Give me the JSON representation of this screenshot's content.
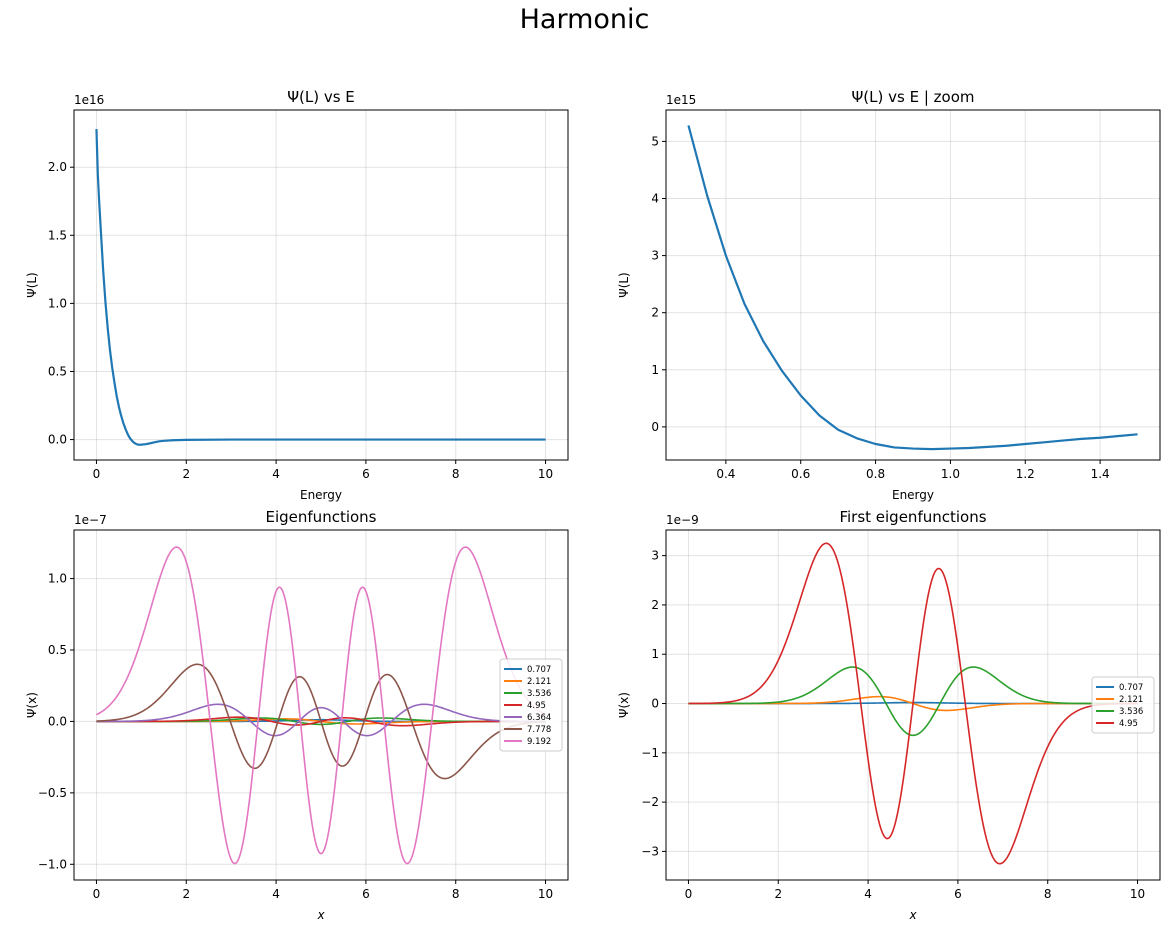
{
  "figure": {
    "suptitle": "Harmonic"
  },
  "chart_data": [
    {
      "id": "p0",
      "type": "line",
      "title": "Ψ(L) vs E",
      "xlabel": "Energy",
      "ylabel": "Ψ(L)",
      "scale_label": "1e16",
      "xlim": [
        -0.5,
        10.5
      ],
      "ylim": [
        -0.15,
        2.42
      ],
      "xticks": [
        0,
        2,
        4,
        6,
        8,
        10
      ],
      "xtick_labels": [
        "0",
        "2",
        "4",
        "6",
        "8",
        "10"
      ],
      "yticks": [
        0,
        0.5,
        1.0,
        1.5,
        2.0
      ],
      "ytick_labels": [
        "0.0",
        "0.5",
        "1.0",
        "1.5",
        "2.0"
      ],
      "grid": true,
      "series": [
        {
          "color": "#1f77b4",
          "x": [
            0.0,
            0.03,
            0.06,
            0.1,
            0.15,
            0.2,
            0.25,
            0.3,
            0.35,
            0.4,
            0.45,
            0.5,
            0.55,
            0.6,
            0.65,
            0.7,
            0.75,
            0.8,
            0.85,
            0.9,
            0.95,
            1.0,
            1.1,
            1.2,
            1.3,
            1.4,
            1.5,
            1.7,
            2.0,
            3.0,
            4.0,
            5.0,
            6.0,
            7.0,
            8.0,
            9.0,
            10.0
          ],
          "y": [
            2.28,
            1.95,
            1.75,
            1.52,
            1.24,
            1.01,
            0.82,
            0.66,
            0.53,
            0.42,
            0.32,
            0.24,
            0.175,
            0.12,
            0.075,
            0.037,
            0.008,
            -0.012,
            -0.026,
            -0.035,
            -0.038,
            -0.037,
            -0.034,
            -0.027,
            -0.019,
            -0.013,
            -0.009,
            -0.005,
            -0.002,
            0,
            0,
            0,
            0,
            0,
            0,
            0,
            0
          ]
        }
      ]
    },
    {
      "id": "p1",
      "type": "line",
      "title": "Ψ(L) vs E | zoom",
      "xlabel": "Energy",
      "ylabel": "Ψ(L)",
      "scale_label": "1e15",
      "xlim": [
        0.24,
        1.56
      ],
      "ylim": [
        -0.58,
        5.55
      ],
      "xticks": [
        0.4,
        0.6,
        0.8,
        1.0,
        1.2,
        1.4
      ],
      "xtick_labels": [
        "0.4",
        "0.6",
        "0.8",
        "1.0",
        "1.2",
        "1.4"
      ],
      "yticks": [
        0,
        1,
        2,
        3,
        4,
        5
      ],
      "ytick_labels": [
        "0",
        "1",
        "2",
        "3",
        "4",
        "5"
      ],
      "grid": true,
      "series": [
        {
          "color": "#1f77b4",
          "x": [
            0.3,
            0.35,
            0.4,
            0.45,
            0.5,
            0.55,
            0.6,
            0.65,
            0.7,
            0.75,
            0.8,
            0.85,
            0.9,
            0.95,
            1.0,
            1.05,
            1.1,
            1.15,
            1.2,
            1.25,
            1.3,
            1.35,
            1.4,
            1.45,
            1.5
          ],
          "y": [
            5.28,
            4.05,
            3.0,
            2.15,
            1.5,
            0.98,
            0.55,
            0.2,
            -0.05,
            -0.2,
            -0.3,
            -0.36,
            -0.38,
            -0.39,
            -0.38,
            -0.37,
            -0.35,
            -0.33,
            -0.3,
            -0.27,
            -0.24,
            -0.21,
            -0.19,
            -0.16,
            -0.13
          ]
        }
      ]
    },
    {
      "id": "p2",
      "type": "line",
      "title": "Eigenfunctions",
      "xlabel": "x",
      "ylabel": "Ψ(x)",
      "scale_label": "1e−7",
      "xlim": [
        -0.5,
        10.5
      ],
      "ylim": [
        -1.11,
        1.34
      ],
      "xticks": [
        0,
        2,
        4,
        6,
        8,
        10
      ],
      "xtick_labels": [
        "0",
        "2",
        "4",
        "6",
        "8",
        "10"
      ],
      "yticks": [
        -1.0,
        -0.5,
        0,
        0.5,
        1.0
      ],
      "ytick_labels": [
        "−1.0",
        "−0.5",
        "0.0",
        "0.5",
        "1.0"
      ],
      "grid": true,
      "legend": "center-right",
      "series": [
        {
          "name": "0.707",
          "color": "#1f77b4",
          "n": 0,
          "amp": 0.012,
          "sigma": 0.63,
          "center": 5
        },
        {
          "name": "2.121",
          "color": "#ff7f0e",
          "n": 1,
          "amp": 0.018,
          "sigma": 0.79,
          "center": 5
        },
        {
          "name": "3.536",
          "color": "#2ca02c",
          "n": 2,
          "amp": 0.024,
          "sigma": 0.85,
          "center": 5
        },
        {
          "name": "4.95",
          "color": "#d62728",
          "n": 3,
          "amp": 0.03,
          "sigma": 0.9,
          "center": 5
        },
        {
          "name": "6.364",
          "color": "#9467bd",
          "n": 4,
          "amp": 0.12,
          "sigma": 0.95,
          "center": 5
        },
        {
          "name": "7.778",
          "color": "#8c564b",
          "n": 5,
          "amp": 0.4,
          "sigma": 1.0,
          "center": 5
        },
        {
          "name": "9.192",
          "color": "#e377c2",
          "n": 6,
          "amp": 1.22,
          "sigma": 1.05,
          "center": 5
        }
      ]
    },
    {
      "id": "p3",
      "type": "line",
      "title": "First eigenfunctions",
      "xlabel": "x",
      "ylabel": "Ψ(x)",
      "scale_label": "1e−9",
      "xlim": [
        -0.5,
        10.5
      ],
      "ylim": [
        -3.58,
        3.52
      ],
      "xticks": [
        0,
        2,
        4,
        6,
        8,
        10
      ],
      "xtick_labels": [
        "0",
        "2",
        "4",
        "6",
        "8",
        "10"
      ],
      "yticks": [
        -3,
        -2,
        -1,
        0,
        1,
        2,
        3
      ],
      "ytick_labels": [
        "−3",
        "−2",
        "−1",
        "0",
        "1",
        "2",
        "3"
      ],
      "grid": true,
      "legend": "center-right",
      "series": [
        {
          "name": "0.707",
          "color": "#1f77b4",
          "n": 0,
          "amp": 0.02,
          "sigma": 0.7,
          "center": 5
        },
        {
          "name": "2.121",
          "color": "#ff7f0e",
          "n": 1,
          "amp": 0.14,
          "sigma": 0.75,
          "center": 5
        },
        {
          "name": "3.536",
          "color": "#2ca02c",
          "n": 2,
          "amp": 0.74,
          "sigma": 0.85,
          "center": 5
        },
        {
          "name": "4.95",
          "color": "#d62728",
          "n": 3,
          "amp": 3.25,
          "sigma": 0.95,
          "center": 5
        }
      ]
    }
  ]
}
